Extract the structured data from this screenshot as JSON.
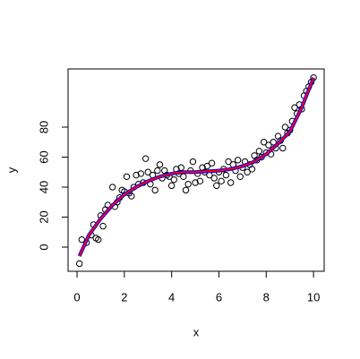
{
  "chart_data": {
    "type": "scatter",
    "xlabel": "x",
    "ylabel": "y",
    "xlim": [
      -0.38,
      10.45
    ],
    "ylim": [
      -16.1,
      118.8
    ],
    "xticks": [
      0,
      2,
      4,
      6,
      8,
      10
    ],
    "yticks": [
      0,
      20,
      40,
      60,
      80
    ],
    "series": [
      {
        "kind": "points",
        "color": "#000000",
        "x": [
          0.1,
          0.2,
          0.4,
          0.6,
          0.7,
          0.8,
          0.9,
          1.0,
          1.1,
          1.2,
          1.3,
          1.5,
          1.6,
          1.7,
          1.8,
          1.9,
          2.0,
          2.1,
          2.2,
          2.3,
          2.4,
          2.5,
          2.6,
          2.7,
          2.8,
          2.9,
          3.0,
          3.1,
          3.2,
          3.3,
          3.4,
          3.5,
          3.6,
          3.7,
          3.8,
          3.9,
          4.0,
          4.1,
          4.2,
          4.3,
          4.4,
          4.5,
          4.6,
          4.7,
          4.8,
          4.9,
          5.0,
          5.1,
          5.2,
          5.3,
          5.4,
          5.5,
          5.6,
          5.7,
          5.8,
          5.9,
          6.0,
          6.1,
          6.2,
          6.3,
          6.4,
          6.5,
          6.6,
          6.7,
          6.8,
          6.9,
          7.0,
          7.1,
          7.2,
          7.3,
          7.4,
          7.5,
          7.6,
          7.7,
          7.8,
          7.9,
          8.0,
          8.1,
          8.2,
          8.3,
          8.4,
          8.5,
          8.6,
          8.7,
          8.8,
          8.9,
          9.0,
          9.1,
          9.2,
          9.3,
          9.4,
          9.5,
          9.6,
          9.7,
          9.8,
          9.9,
          10.0
        ],
        "values": [
          -11,
          5,
          3,
          8,
          15,
          6,
          5,
          21,
          14,
          25,
          28,
          40,
          27,
          30,
          33,
          38,
          37,
          47,
          36,
          34,
          40,
          48,
          42,
          49,
          43,
          59,
          50,
          42,
          48,
          38,
          51,
          55,
          46,
          51,
          48,
          47,
          41,
          45,
          52,
          49,
          53,
          47,
          38,
          42,
          51,
          57,
          43,
          49,
          44,
          53,
          50,
          54,
          48,
          56,
          46,
          41,
          50,
          44,
          52,
          48,
          57,
          43,
          55,
          51,
          58,
          47,
          53,
          57,
          50,
          55,
          52,
          61,
          58,
          64,
          60,
          70,
          63,
          68,
          62,
          70,
          66,
          74,
          71,
          66,
          80,
          76,
          78,
          84,
          93,
          89,
          95,
          92,
          101,
          104,
          107,
          110,
          113
        ]
      },
      {
        "kind": "line",
        "color": "#0000ff",
        "x": [
          0.1,
          0.5,
          1,
          1.5,
          2,
          2.5,
          3,
          3.5,
          4,
          4.5,
          5,
          5.5,
          6,
          6.5,
          7,
          7.5,
          8,
          8.5,
          9,
          9.5,
          10
        ],
        "values": [
          -6,
          8,
          19,
          28,
          35,
          40,
          44,
          47,
          49,
          50,
          50,
          50.5,
          51,
          52,
          54,
          57,
          62,
          69,
          77,
          93,
          113
        ]
      },
      {
        "kind": "line",
        "color": "#ff0000",
        "x": [
          0.1,
          0.5,
          1,
          1.5,
          2,
          2.5,
          3,
          3.5,
          4,
          4.5,
          5,
          5.5,
          6,
          6.5,
          7,
          7.5,
          8,
          8.5,
          9,
          9.5,
          10
        ],
        "values": [
          -6,
          8,
          19,
          28,
          35,
          40,
          44,
          47,
          49,
          50,
          50,
          50.5,
          51,
          52,
          54,
          57,
          62,
          69,
          77,
          93,
          113
        ]
      }
    ]
  }
}
